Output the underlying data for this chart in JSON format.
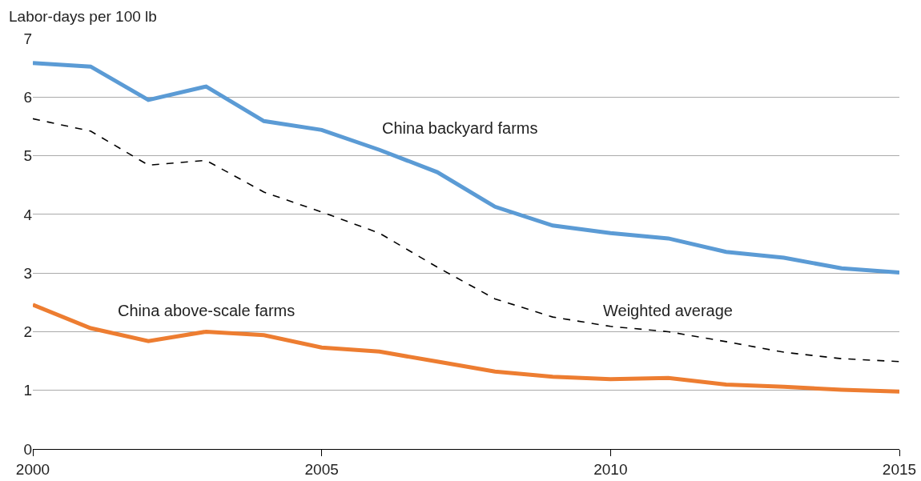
{
  "chart_data": {
    "type": "line",
    "ylabel": "Labor-days per 100 lb",
    "x": [
      2000,
      2001,
      2002,
      2003,
      2004,
      2005,
      2006,
      2007,
      2008,
      2009,
      2010,
      2011,
      2012,
      2013,
      2014,
      2015
    ],
    "series": [
      {
        "name": "China backyard farms",
        "color": "#5b9bd5",
        "line_style": "solid",
        "values": [
          6.58,
          6.52,
          5.95,
          6.18,
          5.59,
          5.44,
          5.1,
          4.72,
          4.13,
          3.81,
          3.68,
          3.59,
          3.36,
          3.26,
          3.08,
          3.01
        ]
      },
      {
        "name": "Weighted average",
        "color": "#000000",
        "line_style": "dashed",
        "values": [
          5.63,
          5.42,
          4.84,
          4.92,
          4.38,
          4.04,
          3.68,
          3.1,
          2.56,
          2.25,
          2.09,
          2.0,
          1.83,
          1.65,
          1.54,
          1.49
        ]
      },
      {
        "name": "China above-scale farms",
        "color": "#ed7d31",
        "line_style": "solid",
        "values": [
          2.46,
          2.06,
          1.84,
          2.0,
          1.94,
          1.73,
          1.66,
          1.49,
          1.32,
          1.23,
          1.19,
          1.21,
          1.1,
          1.06,
          1.01,
          0.98
        ]
      }
    ],
    "xlim": [
      2000,
      2015
    ],
    "xticks": [
      2000,
      2005,
      2010,
      2015
    ],
    "ylim": [
      0,
      7
    ],
    "yticks": [
      0,
      1,
      2,
      3,
      4,
      5,
      6,
      7
    ],
    "grid": "y",
    "legend": false,
    "marker": "none"
  }
}
